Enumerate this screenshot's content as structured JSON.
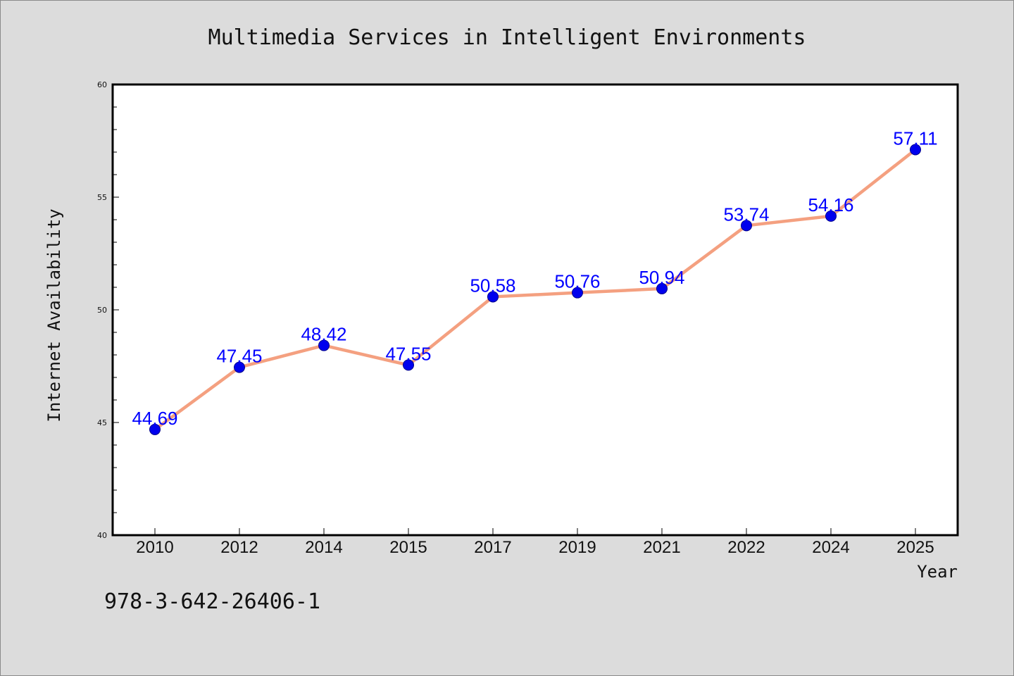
{
  "chart_data": {
    "type": "line",
    "title": "Multimedia Services in Intelligent Environments",
    "xlabel": "Year",
    "ylabel": "Internet Availability",
    "categories": [
      "2010",
      "2012",
      "2014",
      "2015",
      "2017",
      "2019",
      "2021",
      "2022",
      "2024",
      "2025"
    ],
    "series": [
      {
        "values": [
          44.69,
          47.45,
          48.42,
          47.55,
          50.58,
          50.76,
          50.94,
          53.74,
          54.16,
          57.11
        ],
        "labels": [
          "44.69",
          "47.45",
          "48.42",
          "47.55",
          "50.58",
          "50.76",
          "50.94",
          "53.74",
          "54.16",
          "57.11"
        ],
        "line_color": "#f4a080",
        "marker_color": "#0000ee",
        "label_color": "#0000ff"
      }
    ],
    "ylim": [
      40,
      60
    ],
    "yticks": [
      "40",
      "45",
      "50",
      "55",
      "60"
    ],
    "grid": false,
    "legend": "none"
  },
  "footer": {
    "isbn": "978-3-642-26406-1"
  }
}
